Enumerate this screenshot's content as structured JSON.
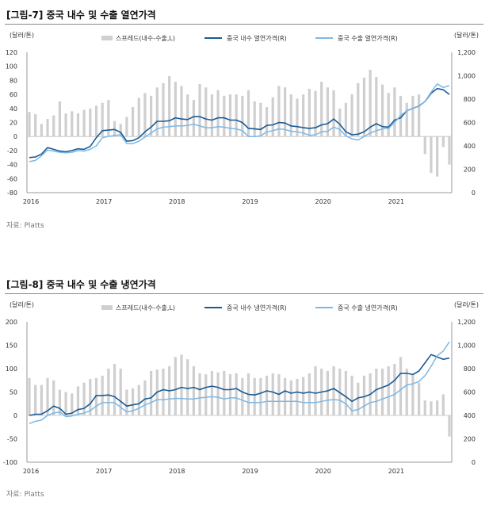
{
  "charts": [
    {
      "title": "[그림-7] 중국 내수 및 수출 열연가격",
      "source": "자료: Platts"
    },
    {
      "title": "[그림-8] 중국 내수 및 수출 냉연가격",
      "source": "자료: Platts"
    }
  ],
  "chart_data": [
    {
      "type": "bar+line",
      "title": "[그림-7] 중국 내수 및 수출 열연가격",
      "left_unit": "(달러/톤)",
      "right_unit": "(달러/톤)",
      "ylim_left": [
        -80,
        120
      ],
      "ylim_right": [
        0,
        1200
      ],
      "left_ticks": [
        "120",
        "100",
        "80",
        "60",
        "40",
        "20",
        "0",
        "-20",
        "-40",
        "-60",
        "-80"
      ],
      "right_ticks": [
        "1,200",
        "1,000",
        "800",
        "600",
        "400",
        "200",
        "0"
      ],
      "x_labels": [
        "2016",
        "2017",
        "2018",
        "2019",
        "2020",
        "2021"
      ],
      "x_label_months": [
        0,
        12,
        24,
        36,
        48,
        60
      ],
      "months": 70,
      "legend": [
        "스프레드(내수-수출,L)",
        "중국 내수 열연가격(R)",
        "중국 수출 열연가격(R)"
      ],
      "series": [
        {
          "name": "스프레드(내수-수출,L)",
          "axis": "left",
          "type": "bar",
          "color": "#cfcfcf",
          "values": [
            35,
            32,
            18,
            25,
            30,
            50,
            33,
            36,
            33,
            38,
            40,
            44,
            48,
            52,
            22,
            18,
            28,
            42,
            55,
            62,
            58,
            70,
            76,
            86,
            78,
            72,
            60,
            52,
            75,
            70,
            60,
            66,
            58,
            60,
            60,
            58,
            66,
            50,
            48,
            42,
            56,
            72,
            70,
            60,
            54,
            60,
            68,
            65,
            78,
            70,
            66,
            40,
            48,
            60,
            76,
            84,
            95,
            85,
            74,
            62,
            70,
            58,
            48,
            58,
            60,
            -25,
            -52,
            -57,
            -15,
            -40
          ]
        },
        {
          "name": "중국 내수 열연가격(R)",
          "axis": "right",
          "type": "line",
          "color": "#1a5a96",
          "values": [
            300,
            305,
            330,
            385,
            370,
            355,
            350,
            360,
            375,
            370,
            395,
            470,
            530,
            535,
            540,
            515,
            440,
            445,
            470,
            520,
            560,
            610,
            610,
            615,
            640,
            630,
            625,
            650,
            650,
            630,
            620,
            640,
            640,
            620,
            620,
            600,
            550,
            545,
            540,
            575,
            580,
            600,
            595,
            570,
            565,
            555,
            550,
            555,
            580,
            590,
            630,
            585,
            520,
            495,
            500,
            520,
            560,
            590,
            565,
            560,
            620,
            640,
            700,
            720,
            740,
            780,
            850,
            890,
            880,
            840
          ]
        },
        {
          "name": "중국 수출 열연가격(R)",
          "axis": "right",
          "type": "line",
          "color": "#7bb8e6",
          "values": [
            265,
            275,
            315,
            365,
            355,
            345,
            340,
            345,
            360,
            355,
            370,
            400,
            470,
            480,
            490,
            495,
            420,
            420,
            440,
            475,
            510,
            545,
            560,
            565,
            570,
            570,
            575,
            585,
            570,
            555,
            555,
            565,
            560,
            550,
            545,
            530,
            480,
            480,
            485,
            520,
            530,
            545,
            540,
            525,
            520,
            510,
            490,
            495,
            520,
            525,
            560,
            540,
            485,
            460,
            450,
            480,
            510,
            530,
            545,
            550,
            600,
            660,
            700,
            720,
            740,
            780,
            860,
            930,
            900,
            915
          ]
        }
      ]
    },
    {
      "type": "bar+line",
      "title": "[그림-8] 중국 내수 및 수출 냉연가격",
      "left_unit": "(달러/톤)",
      "right_unit": "(달러/톤)",
      "ylim_left": [
        -100,
        200
      ],
      "ylim_right": [
        0,
        1200
      ],
      "left_ticks": [
        "200",
        "150",
        "100",
        "50",
        "0",
        "-50",
        "-100"
      ],
      "right_ticks": [
        "1,200",
        "1,000",
        "800",
        "600",
        "400",
        "200",
        "0"
      ],
      "x_labels": [
        "2016",
        "2017",
        "2018",
        "2019",
        "2020",
        "2021"
      ],
      "x_label_months": [
        0,
        12,
        24,
        36,
        48,
        60
      ],
      "months": 70,
      "legend": [
        "스프레드(내수-수출,L)",
        "중국 내수 냉연가격(R)",
        "중국 수출 냉연가격(R)"
      ],
      "series": [
        {
          "name": "스프레드(내수-수출,L)",
          "axis": "left",
          "type": "bar",
          "color": "#cfcfcf",
          "values": [
            80,
            65,
            65,
            80,
            75,
            55,
            50,
            47,
            62,
            70,
            78,
            80,
            85,
            100,
            110,
            100,
            55,
            58,
            65,
            75,
            95,
            98,
            100,
            105,
            125,
            130,
            120,
            105,
            90,
            88,
            95,
            92,
            95,
            88,
            90,
            80,
            90,
            80,
            80,
            85,
            90,
            88,
            80,
            75,
            78,
            82,
            90,
            105,
            100,
            95,
            105,
            100,
            95,
            85,
            70,
            85,
            90,
            100,
            100,
            105,
            110,
            125,
            100,
            88,
            70,
            32,
            30,
            32,
            45,
            -45
          ]
        },
        {
          "name": "중국 내수 냉연가격(R)",
          "axis": "right",
          "type": "line",
          "color": "#1a5a96",
          "values": [
            400,
            410,
            410,
            440,
            480,
            460,
            410,
            420,
            450,
            460,
            500,
            570,
            570,
            575,
            560,
            520,
            480,
            490,
            500,
            540,
            550,
            600,
            620,
            610,
            620,
            640,
            630,
            640,
            620,
            640,
            650,
            640,
            620,
            620,
            630,
            600,
            580,
            575,
            590,
            610,
            600,
            580,
            610,
            590,
            600,
            590,
            600,
            590,
            600,
            610,
            630,
            595,
            560,
            520,
            550,
            560,
            580,
            620,
            640,
            660,
            700,
            760,
            760,
            750,
            780,
            850,
            920,
            900,
            880,
            890
          ]
        },
        {
          "name": "중국 수출 냉연가격(R)",
          "axis": "right",
          "type": "line",
          "color": "#7bb8e6",
          "values": [
            330,
            350,
            360,
            400,
            420,
            430,
            390,
            395,
            410,
            420,
            440,
            480,
            510,
            510,
            510,
            470,
            430,
            440,
            460,
            490,
            510,
            535,
            535,
            540,
            545,
            545,
            540,
            540,
            550,
            555,
            560,
            555,
            540,
            550,
            550,
            530,
            510,
            510,
            510,
            520,
            520,
            520,
            520,
            520,
            520,
            510,
            510,
            510,
            520,
            530,
            535,
            530,
            500,
            440,
            450,
            480,
            510,
            520,
            540,
            560,
            580,
            620,
            660,
            670,
            690,
            740,
            820,
            910,
            950,
            1030
          ]
        }
      ]
    }
  ]
}
